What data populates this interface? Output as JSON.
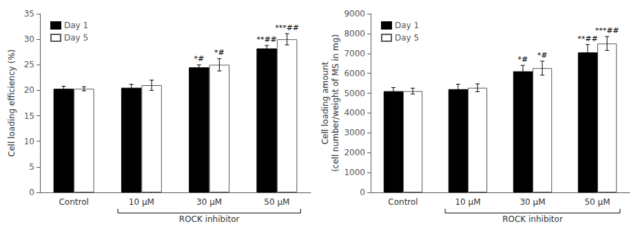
{
  "chart_data": [
    {
      "type": "bar",
      "ylabel": "Cell loading efficiency (%)",
      "xlabel": "ROCK inhibitor",
      "categories": [
        "Control",
        "10 μM",
        "30 μM",
        "50 μM"
      ],
      "series": [
        {
          "name": "Day 1",
          "color": "#000000",
          "values": [
            20.3,
            20.5,
            24.5,
            28.2
          ],
          "errors": [
            0.5,
            0.7,
            0.5,
            0.6
          ],
          "annotations": [
            null,
            null,
            "*#",
            "**##"
          ]
        },
        {
          "name": "Day 5",
          "color": "#ffffff",
          "values": [
            20.3,
            21.0,
            25.0,
            30.0
          ],
          "errors": [
            0.4,
            1.0,
            1.2,
            1.1
          ],
          "annotations": [
            null,
            null,
            "*#",
            "***##"
          ]
        }
      ],
      "ylim": [
        0,
        35
      ],
      "yticks": [
        0,
        5,
        10,
        15,
        20,
        25,
        30,
        35
      ],
      "legend": "upper left",
      "grid": false
    },
    {
      "type": "bar",
      "ylabel": "Cell loading amount\n(cell number/weight of MS in mg)",
      "xlabel": "ROCK inhibitor",
      "categories": [
        "Control",
        "10 μM",
        "30 μM",
        "50 μM"
      ],
      "series": [
        {
          "name": "Day 1",
          "color": "#000000",
          "values": [
            5100,
            5200,
            6100,
            7050
          ],
          "errors": [
            180,
            250,
            300,
            400
          ],
          "annotations": [
            null,
            null,
            "*#",
            "**##"
          ]
        },
        {
          "name": "Day 5",
          "color": "#ffffff",
          "values": [
            5100,
            5270,
            6260,
            7500
          ],
          "errors": [
            150,
            200,
            350,
            350
          ],
          "annotations": [
            null,
            null,
            "*#",
            "***##"
          ]
        }
      ],
      "ylim": [
        0,
        9000
      ],
      "yticks": [
        0,
        1000,
        2000,
        3000,
        4000,
        5000,
        6000,
        7000,
        8000,
        9000
      ],
      "legend": "upper left",
      "grid": false
    }
  ]
}
